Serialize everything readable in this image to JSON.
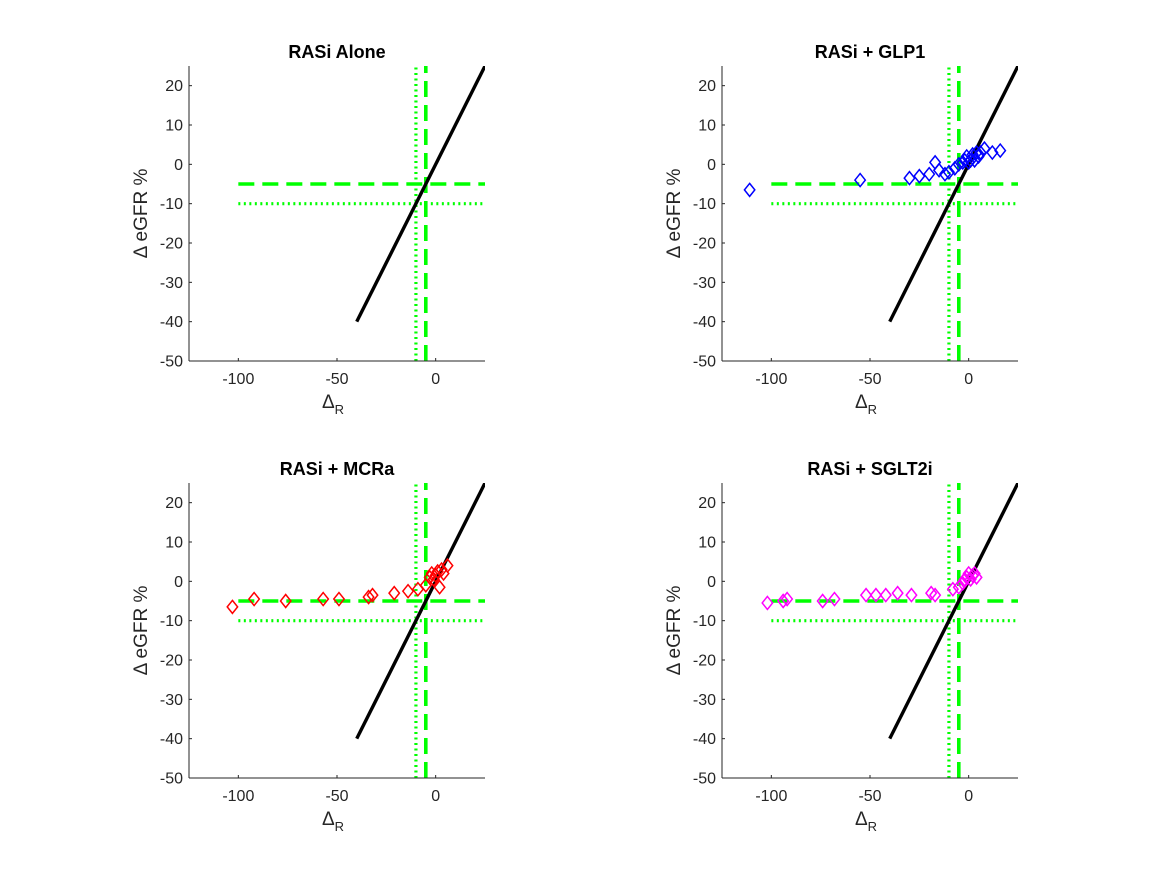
{
  "chart_data": [
    {
      "type": "scatter",
      "title": "RASi Alone",
      "xlabel_symbol": "Δ",
      "xlabel_sub": "R",
      "ylabel": "Δ eGFR %",
      "xlim": [
        -125,
        25
      ],
      "ylim": [
        -50,
        25
      ],
      "xticks": [
        -100,
        -50,
        0
      ],
      "yticks": [
        20,
        10,
        0,
        -10,
        -20,
        -30,
        -40,
        -50
      ],
      "grid": false,
      "marker_color": "#0000ff",
      "series": [
        {
          "x": [],
          "y": []
        }
      ],
      "reference_line": {
        "x": [
          -40,
          25
        ],
        "y": [
          -40,
          25
        ],
        "color": "#000000"
      },
      "threshold_dashed": {
        "x": -5,
        "y": -5,
        "color": "#00ff00"
      },
      "threshold_dotted": {
        "x": -10,
        "y": -10,
        "color": "#00ff00"
      }
    },
    {
      "type": "scatter",
      "title": "RASi + GLP1",
      "xlabel_symbol": "Δ",
      "xlabel_sub": "R",
      "ylabel": "Δ eGFR %",
      "xlim": [
        -125,
        25
      ],
      "ylim": [
        -50,
        25
      ],
      "xticks": [
        -100,
        -50,
        0
      ],
      "yticks": [
        20,
        10,
        0,
        -10,
        -20,
        -30,
        -40,
        -50
      ],
      "grid": false,
      "marker_color": "#0000ff",
      "series": [
        {
          "x": [
            -111,
            -55,
            -30,
            -25,
            -20,
            -17,
            -15,
            -12,
            -10,
            -7,
            -5,
            -3,
            -2,
            -1,
            0,
            1,
            2,
            3,
            4,
            5,
            6,
            8,
            12,
            16
          ],
          "y": [
            -6.5,
            -4,
            -3.5,
            -3,
            -2.5,
            0.5,
            -1.5,
            -2.5,
            -2,
            -1,
            0,
            0.5,
            1,
            2,
            0.5,
            1,
            2.5,
            1,
            3,
            2,
            3,
            4,
            3,
            3.5
          ]
        }
      ],
      "reference_line": {
        "x": [
          -40,
          25
        ],
        "y": [
          -40,
          25
        ],
        "color": "#000000"
      },
      "threshold_dashed": {
        "x": -5,
        "y": -5,
        "color": "#00ff00"
      },
      "threshold_dotted": {
        "x": -10,
        "y": -10,
        "color": "#00ff00"
      }
    },
    {
      "type": "scatter",
      "title": "RASi + MCRa",
      "xlabel_symbol": "Δ",
      "xlabel_sub": "R",
      "ylabel": "Δ eGFR %",
      "xlim": [
        -125,
        25
      ],
      "ylim": [
        -50,
        25
      ],
      "xticks": [
        -100,
        -50,
        0
      ],
      "yticks": [
        20,
        10,
        0,
        -10,
        -20,
        -30,
        -40,
        -50
      ],
      "grid": false,
      "marker_color": "#ff0000",
      "series": [
        {
          "x": [
            -103,
            -92,
            -76,
            -57,
            -49,
            -34,
            -32,
            -21,
            -14,
            -9,
            -5,
            -3,
            -2,
            -1,
            0,
            1,
            2,
            3,
            4,
            6
          ],
          "y": [
            -6.5,
            -4.5,
            -5,
            -4.5,
            -4.5,
            -4,
            -3.5,
            -3,
            -2.5,
            -2,
            -1,
            1,
            2,
            0.5,
            1.5,
            2.5,
            -1.5,
            3,
            2,
            4
          ]
        }
      ],
      "reference_line": {
        "x": [
          -40,
          25
        ],
        "y": [
          -40,
          25
        ],
        "color": "#000000"
      },
      "threshold_dashed": {
        "x": -5,
        "y": -5,
        "color": "#00ff00"
      },
      "threshold_dotted": {
        "x": -10,
        "y": -10,
        "color": "#00ff00"
      }
    },
    {
      "type": "scatter",
      "title": "RASi + SGLT2i",
      "xlabel_symbol": "Δ",
      "xlabel_sub": "R",
      "ylabel": "Δ eGFR %",
      "xlim": [
        -125,
        25
      ],
      "ylim": [
        -50,
        25
      ],
      "xticks": [
        -100,
        -50,
        0
      ],
      "yticks": [
        20,
        10,
        0,
        -10,
        -20,
        -30,
        -40,
        -50
      ],
      "grid": false,
      "marker_color": "#ff00ff",
      "series": [
        {
          "x": [
            -102,
            -94,
            -92,
            -74,
            -68,
            -52,
            -47,
            -42,
            -36,
            -29,
            -19,
            -17,
            -8,
            -5,
            -3,
            -2,
            -1,
            0,
            1,
            2,
            3,
            4
          ],
          "y": [
            -5.5,
            -5,
            -4.5,
            -5,
            -4.5,
            -3.5,
            -3.5,
            -3.5,
            -3,
            -3.5,
            -3,
            -3.5,
            -2,
            -1.5,
            -0.5,
            0.5,
            1,
            2,
            0.5,
            1.5,
            2,
            1
          ]
        }
      ],
      "reference_line": {
        "x": [
          -40,
          25
        ],
        "y": [
          -40,
          25
        ],
        "color": "#000000"
      },
      "threshold_dashed": {
        "x": -5,
        "y": -5,
        "color": "#00ff00"
      },
      "threshold_dotted": {
        "x": -10,
        "y": -10,
        "color": "#00ff00"
      }
    }
  ]
}
